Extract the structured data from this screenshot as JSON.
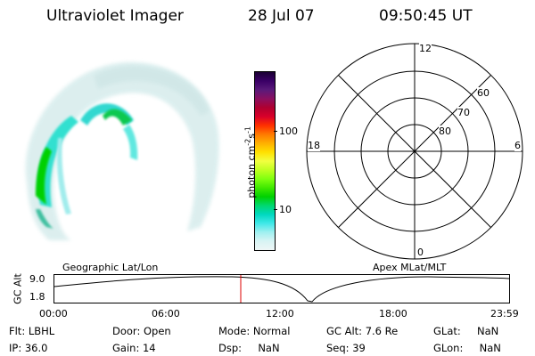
{
  "header": {
    "instrument": "Ultraviolet Imager",
    "date": "28 Jul 07",
    "time": "09:50:45 UT"
  },
  "colorbar": {
    "label": "photon cm",
    "label_exp1": "-2",
    "label_s": "s",
    "label_exp2": "-1",
    "ticks": [
      "100",
      "10"
    ],
    "colors": [
      "#1a0033",
      "#3a0066",
      "#5a1a7a",
      "#8a1060",
      "#b00030",
      "#d8002a",
      "#ff3000",
      "#ff7a00",
      "#ffb000",
      "#ffe000",
      "#f2ff40",
      "#c0ff20",
      "#80ff10",
      "#40e800",
      "#00d000",
      "#00d870",
      "#00d8c0",
      "#40e8e8",
      "#a0f0f0",
      "#d8f4f4",
      "#eef6f6"
    ]
  },
  "polar": {
    "mlt_labels": {
      "top": "12",
      "left": "18",
      "right": "6",
      "bottom": "0"
    },
    "lat_labels": [
      "60",
      "70",
      "80"
    ]
  },
  "timeline": {
    "y_axis_label": "GC Alt",
    "y_ticks": [
      "9.0",
      "1.8"
    ],
    "left_title": "Geographic Lat/Lon",
    "right_title": "Apex MLat/MLT",
    "x_ticks": [
      "00:00",
      "06:00",
      "12:00",
      "18:00",
      "23:59"
    ],
    "current_marker_color": "#dd0000"
  },
  "status": {
    "flt_label": "Flt:",
    "flt_value": "LBHL",
    "ip_label": "IP:",
    "ip_value": "36.0",
    "door_label": "Door:",
    "door_value": "Open",
    "gain_label": "Gain:",
    "gain_value": "14",
    "mode_label": "Mode:",
    "mode_value": "Normal",
    "dsp_label": "Dsp:",
    "dsp_value": "NaN",
    "gcalt_label": "GC Alt:",
    "gcalt_value": "7.6 Re",
    "seq_label": "Seq:",
    "seq_value": "39",
    "glat_label": "GLat:",
    "glat_value": "NaN",
    "glon_label": "GLon:",
    "glon_value": "NaN"
  }
}
